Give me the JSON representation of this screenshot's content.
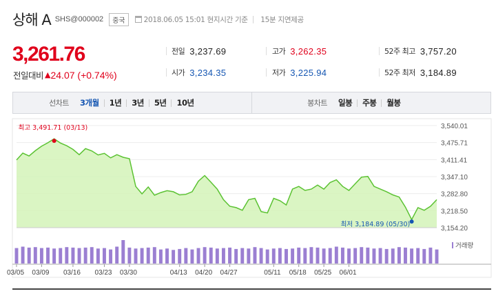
{
  "header": {
    "name": "상해 A",
    "code": "SHS@000002",
    "country": "중국",
    "update_info": "2018.06.05 15:01 현지시간 기준",
    "delay_info": "15분 지연제공"
  },
  "price": {
    "current": "3,261.76",
    "change_label": "전일대비",
    "change_arrow": "▲",
    "change_value": "24.07 (+0.74%)"
  },
  "stats": {
    "prev_close_label": "전일",
    "prev_close": "3,237.69",
    "open_label": "시가",
    "open": "3,234.35",
    "high_label": "고가",
    "high": "3,262.35",
    "low_label": "저가",
    "low": "3,225.94",
    "wk52_high_label": "52주 최고",
    "wk52_high": "3,757.20",
    "wk52_low_label": "52주 최저",
    "wk52_low": "3,184.89"
  },
  "tabs": {
    "line_label": "선차트",
    "line_tabs": [
      "3개월",
      "1년",
      "3년",
      "5년",
      "10년"
    ],
    "line_active": 0,
    "candle_label": "봉차트",
    "candle_tabs": [
      "일봉",
      "주봉",
      "월봉"
    ]
  },
  "colors": {
    "up": "#e0001b",
    "down": "#1556b2",
    "line": "#5bc232",
    "fill": "#d3f3b9",
    "volume": "#9b7fd2"
  },
  "chart_data": {
    "type": "area",
    "ylim": [
      3154.2,
      3540.01
    ],
    "yticks": [
      "3,540.01",
      "3,475.71",
      "3,411.41",
      "3,347.10",
      "3,282.80",
      "3,218.50",
      "3,154.20"
    ],
    "x_tick_labels": [
      "03/05",
      "03/09",
      "03/16",
      "03/23",
      "03/30",
      "04/13",
      "04/20",
      "04/27",
      "05/11",
      "05/18",
      "05/25",
      "06/01"
    ],
    "x_tick_index": [
      0,
      4,
      9,
      14,
      18,
      26,
      30,
      34,
      41,
      45,
      49,
      53
    ],
    "values": [
      3410,
      3436,
      3425,
      3445,
      3462,
      3475,
      3490,
      3474,
      3464,
      3450,
      3430,
      3453,
      3444,
      3429,
      3435,
      3418,
      3430,
      3420,
      3415,
      3310,
      3282,
      3308,
      3277,
      3287,
      3294,
      3290,
      3278,
      3280,
      3290,
      3330,
      3351,
      3326,
      3300,
      3260,
      3235,
      3230,
      3220,
      3260,
      3265,
      3215,
      3210,
      3265,
      3256,
      3240,
      3300,
      3310,
      3295,
      3300,
      3315,
      3300,
      3325,
      3335,
      3310,
      3295,
      3320,
      3345,
      3348,
      3310,
      3300,
      3290,
      3278,
      3270,
      3232,
      3185,
      3230,
      3220,
      3235,
      3260
    ],
    "volume": [
      33,
      36,
      34,
      35,
      33,
      34,
      32,
      33,
      35,
      34,
      33,
      34,
      35,
      32,
      33,
      30,
      36,
      50,
      34,
      32,
      33,
      34,
      35,
      30,
      32,
      29,
      31,
      33,
      30,
      33,
      35,
      34,
      32,
      33,
      34,
      31,
      33,
      32,
      35,
      33,
      30,
      32,
      33,
      31,
      32,
      34,
      33,
      35,
      34,
      32,
      33,
      36,
      34,
      32,
      33,
      35,
      34,
      32,
      33,
      31,
      32,
      35,
      34,
      32,
      33,
      31,
      34,
      30
    ],
    "high_annotation": "최고 3,491.71 (03/13)",
    "low_annotation": "최저 3,184.89 (05/30)",
    "volume_label": "거래량"
  }
}
